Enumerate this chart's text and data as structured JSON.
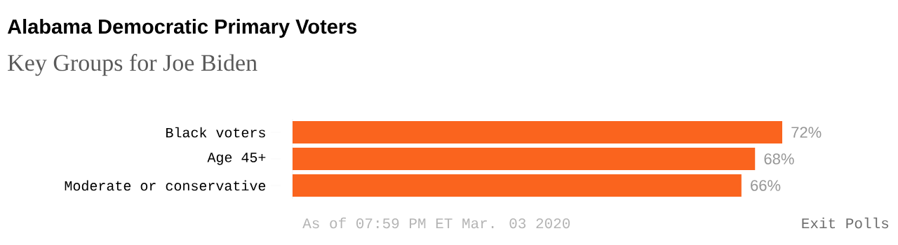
{
  "chart_data": {
    "type": "bar",
    "orientation": "horizontal",
    "title": "Alabama Democratic Primary Voters",
    "subtitle": "Key Groups for Joe Biden",
    "categories": [
      "Black voters",
      "Age 45+",
      "Moderate or conservative"
    ],
    "values": [
      72,
      68,
      66
    ],
    "color": "#fa641e",
    "value_labels": [
      "72%",
      "68%",
      "66%"
    ],
    "annotations": [
      "As of 07:59 PM ET Mar. 03 2020",
      "Exit Polls"
    ]
  }
}
